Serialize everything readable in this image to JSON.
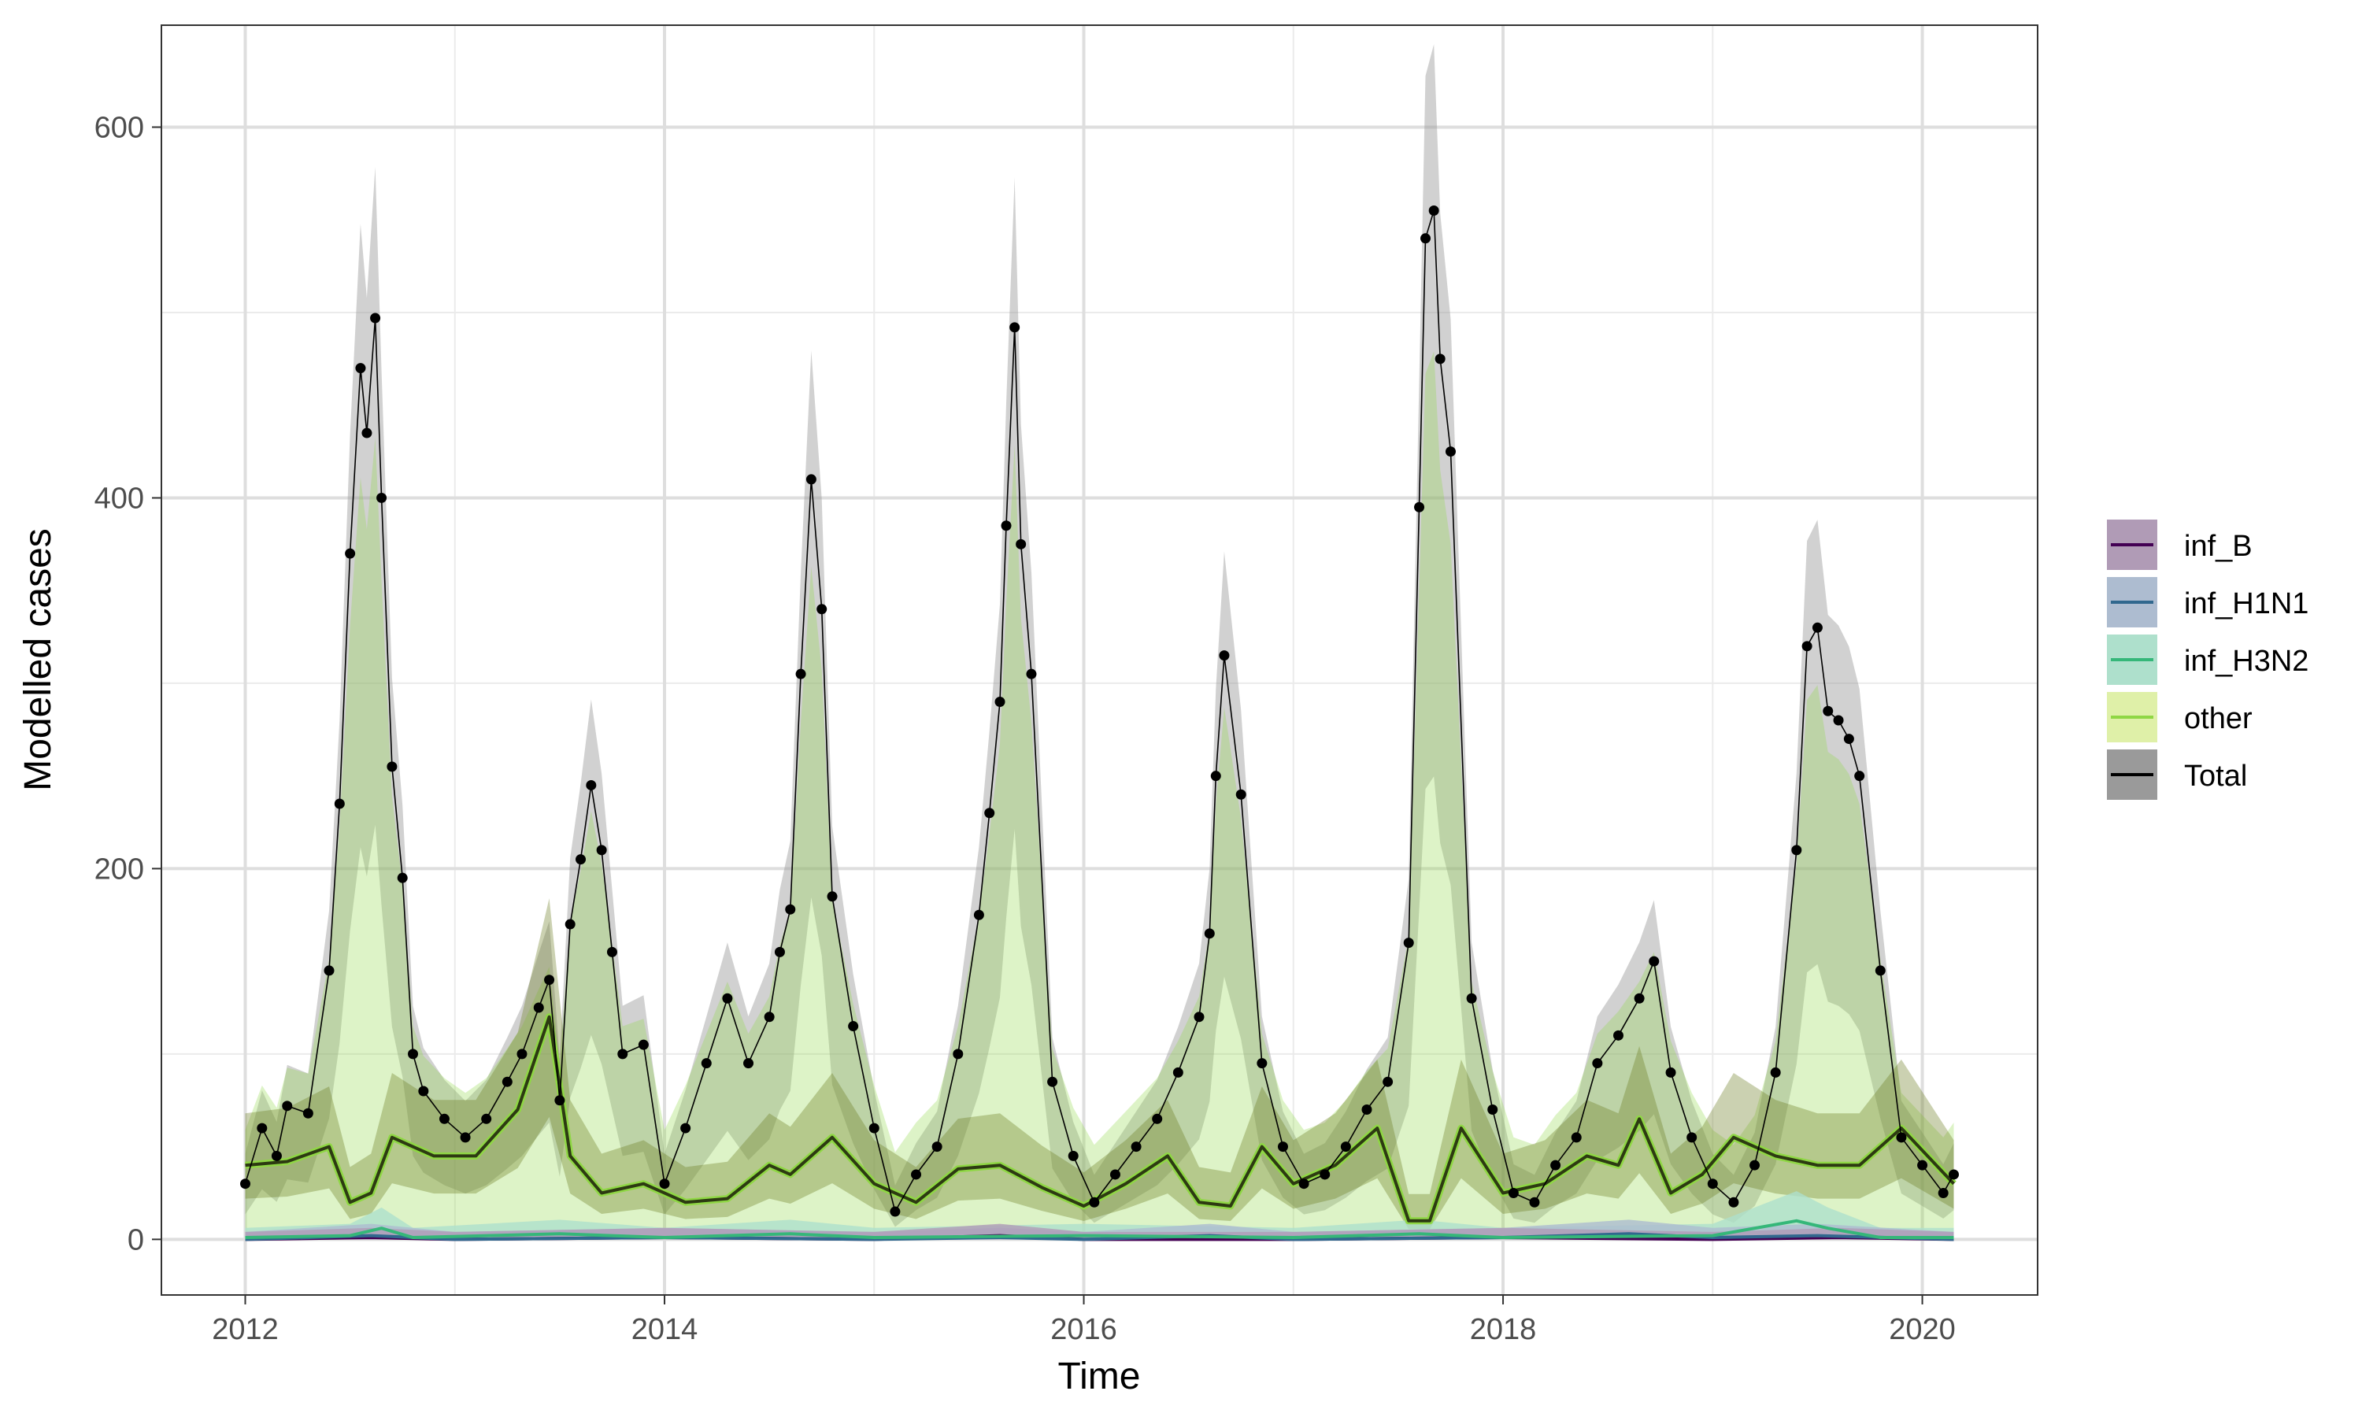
{
  "chart_data": {
    "type": "line",
    "xlabel": "Time",
    "ylabel": "Modelled cases",
    "xlim": [
      2011.6,
      2020.55
    ],
    "ylim": [
      -30,
      655
    ],
    "x_ticks": [
      2012,
      2014,
      2016,
      2018,
      2020
    ],
    "y_ticks": [
      0,
      200,
      400,
      600
    ],
    "grid": true,
    "legend_position": "right",
    "legend": [
      {
        "label": "inf_B",
        "line_color": "#440154",
        "fill_color": "#b09bb6"
      },
      {
        "label": "inf_H1N1",
        "line_color": "#31688e",
        "fill_color": "#adbcd0"
      },
      {
        "label": "inf_H3N2",
        "line_color": "#35b779",
        "fill_color": "#aee0cc"
      },
      {
        "label": "other",
        "line_color": "#8fd744",
        "fill_color": "#dff0a8"
      },
      {
        "label": "Total",
        "line_color": "#000000",
        "fill_color": "#9a9a9a"
      }
    ],
    "series": [
      {
        "name": "Total",
        "x": [
          2012.0,
          2012.08,
          2012.15,
          2012.2,
          2012.3,
          2012.4,
          2012.45,
          2012.5,
          2012.55,
          2012.58,
          2012.62,
          2012.65,
          2012.7,
          2012.75,
          2012.8,
          2012.85,
          2012.95,
          2013.05,
          2013.15,
          2013.25,
          2013.32,
          2013.4,
          2013.45,
          2013.5,
          2013.55,
          2013.6,
          2013.65,
          2013.7,
          2013.75,
          2013.8,
          2013.9,
          2014.0,
          2014.1,
          2014.2,
          2014.3,
          2014.4,
          2014.5,
          2014.55,
          2014.6,
          2014.65,
          2014.7,
          2014.75,
          2014.8,
          2014.9,
          2015.0,
          2015.1,
          2015.2,
          2015.3,
          2015.4,
          2015.5,
          2015.55,
          2015.6,
          2015.63,
          2015.67,
          2015.7,
          2015.75,
          2015.85,
          2015.95,
          2016.05,
          2016.15,
          2016.25,
          2016.35,
          2016.45,
          2016.55,
          2016.6,
          2016.63,
          2016.67,
          2016.75,
          2016.85,
          2016.95,
          2017.05,
          2017.15,
          2017.25,
          2017.35,
          2017.45,
          2017.55,
          2017.6,
          2017.63,
          2017.67,
          2017.7,
          2017.75,
          2017.85,
          2017.95,
          2018.05,
          2018.15,
          2018.25,
          2018.35,
          2018.45,
          2018.55,
          2018.65,
          2018.72,
          2018.8,
          2018.9,
          2019.0,
          2019.1,
          2019.2,
          2019.3,
          2019.4,
          2019.45,
          2019.5,
          2019.55,
          2019.6,
          2019.65,
          2019.7,
          2019.8,
          2019.9,
          2020.0,
          2020.1,
          2020.15
        ],
        "y": [
          30,
          60,
          45,
          72,
          68,
          145,
          235,
          370,
          470,
          435,
          497,
          400,
          255,
          195,
          100,
          80,
          65,
          55,
          65,
          85,
          100,
          125,
          140,
          75,
          170,
          205,
          245,
          210,
          155,
          100,
          105,
          30,
          60,
          95,
          130,
          95,
          120,
          155,
          178,
          305,
          410,
          340,
          185,
          115,
          60,
          15,
          35,
          50,
          100,
          175,
          230,
          290,
          385,
          492,
          375,
          305,
          85,
          45,
          20,
          35,
          50,
          65,
          90,
          120,
          165,
          250,
          315,
          240,
          95,
          50,
          30,
          35,
          50,
          70,
          85,
          160,
          395,
          540,
          555,
          475,
          425,
          130,
          70,
          25,
          20,
          40,
          55,
          95,
          110,
          130,
          150,
          90,
          55,
          30,
          20,
          40,
          90,
          210,
          320,
          330,
          285,
          280,
          270,
          250,
          145,
          55,
          40,
          25,
          35
        ]
      },
      {
        "name": "other",
        "x": [
          2012.0,
          2012.2,
          2012.4,
          2012.5,
          2012.6,
          2012.7,
          2012.9,
          2013.1,
          2013.3,
          2013.45,
          2013.55,
          2013.7,
          2013.9,
          2014.1,
          2014.3,
          2014.5,
          2014.6,
          2014.8,
          2015.0,
          2015.2,
          2015.4,
          2015.6,
          2015.8,
          2016.0,
          2016.2,
          2016.4,
          2016.55,
          2016.7,
          2016.85,
          2017.0,
          2017.2,
          2017.4,
          2017.55,
          2017.65,
          2017.8,
          2018.0,
          2018.2,
          2018.4,
          2018.55,
          2018.65,
          2018.8,
          2018.95,
          2019.1,
          2019.3,
          2019.5,
          2019.7,
          2019.9,
          2020.15
        ],
        "y": [
          40,
          42,
          50,
          20,
          25,
          55,
          45,
          45,
          70,
          120,
          45,
          25,
          30,
          20,
          22,
          40,
          35,
          55,
          30,
          20,
          38,
          40,
          28,
          18,
          30,
          45,
          20,
          18,
          50,
          30,
          40,
          60,
          10,
          10,
          60,
          25,
          30,
          45,
          40,
          65,
          25,
          35,
          55,
          45,
          40,
          40,
          60,
          30
        ]
      },
      {
        "name": "inf_H3N2",
        "x": [
          2012.0,
          2012.5,
          2012.65,
          2012.8,
          2013.5,
          2014.0,
          2014.6,
          2015.0,
          2016.0,
          2017.0,
          2017.6,
          2018.0,
          2019.0,
          2019.4,
          2019.55,
          2019.8,
          2020.15
        ],
        "y": [
          1,
          2,
          6,
          1,
          3,
          1,
          3,
          1,
          2,
          1,
          3,
          1,
          2,
          10,
          6,
          1,
          1
        ]
      },
      {
        "name": "inf_H1N1",
        "x": [
          2012.0,
          2012.6,
          2013.0,
          2014.0,
          2015.0,
          2015.6,
          2016.0,
          2016.6,
          2017.0,
          2018.0,
          2018.6,
          2019.0,
          2019.5,
          2020.15
        ],
        "y": [
          0,
          2,
          0,
          1,
          0,
          1,
          0,
          2,
          0,
          1,
          3,
          1,
          2,
          0
        ]
      },
      {
        "name": "inf_B",
        "x": [
          2012.0,
          2012.6,
          2013.0,
          2014.0,
          2015.0,
          2015.6,
          2016.0,
          2017.0,
          2018.0,
          2019.0,
          2019.6,
          2020.15
        ],
        "y": [
          0,
          1,
          0,
          1,
          0,
          2,
          0,
          0,
          1,
          0,
          1,
          0
        ]
      }
    ]
  }
}
